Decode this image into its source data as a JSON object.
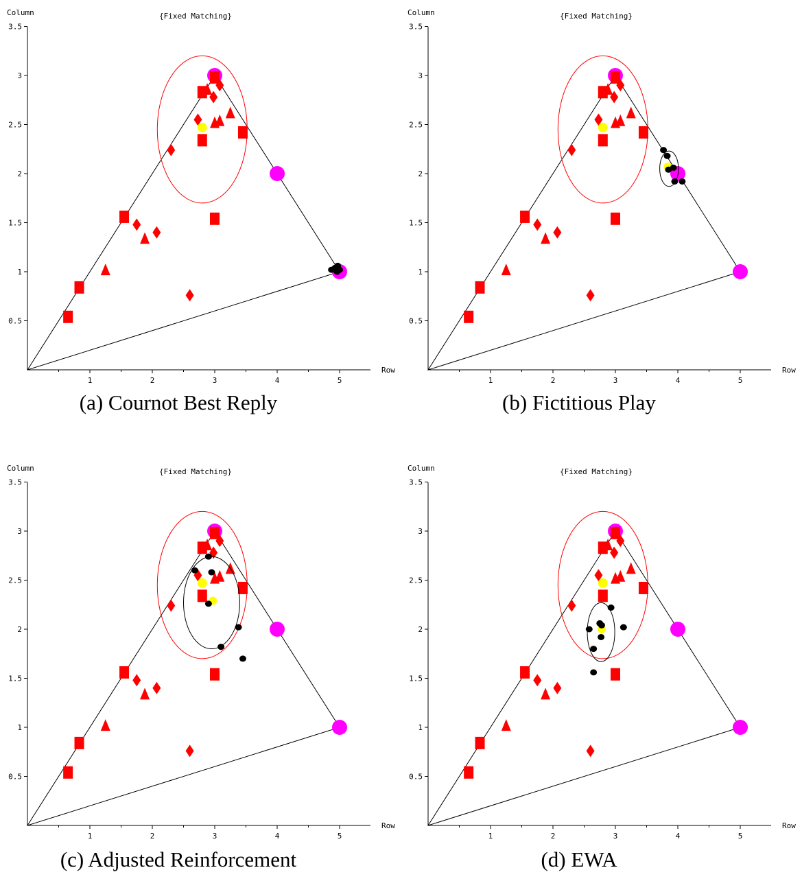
{
  "colors": {
    "experimental": "#ff0000",
    "mean": "#ffff00",
    "equilibrium": "#ff00ff",
    "simulated": "#000000",
    "axes": "#000000"
  },
  "shared": {
    "triangle": [
      [
        0,
        0
      ],
      [
        3,
        3
      ],
      [
        5,
        1
      ]
    ],
    "equilibria": [
      [
        3,
        3
      ],
      [
        4,
        2
      ],
      [
        5,
        1
      ]
    ],
    "experimental_squares": [
      [
        0.65,
        0.54
      ],
      [
        0.83,
        0.84
      ],
      [
        1.55,
        1.56
      ],
      [
        2.8,
        2.83
      ],
      [
        2.8,
        2.34
      ],
      [
        3.0,
        2.98
      ],
      [
        3.0,
        1.54
      ],
      [
        3.45,
        2.42
      ]
    ],
    "experimental_diamonds": [
      [
        1.75,
        1.48
      ],
      [
        2.07,
        1.4
      ],
      [
        2.3,
        2.24
      ],
      [
        2.6,
        0.76
      ],
      [
        2.73,
        2.55
      ],
      [
        2.98,
        2.78
      ],
      [
        3.08,
        2.9
      ]
    ],
    "experimental_triangles": [
      [
        1.25,
        1.02
      ],
      [
        1.88,
        1.34
      ],
      [
        2.88,
        2.86
      ],
      [
        3.0,
        2.52
      ],
      [
        3.08,
        2.54
      ],
      [
        3.25,
        2.62
      ]
    ],
    "experimental_mean": [
      2.8,
      2.47
    ],
    "experimental_ellipse": {
      "cx": 2.8,
      "cy": 2.45,
      "rx": 0.72,
      "ry": 0.75
    }
  },
  "chart_data": [
    {
      "type": "scatter",
      "title": "{Fixed Matching}",
      "caption": "(a) Cournot Best Reply",
      "xlabel": "Row",
      "ylabel": "Column",
      "xlim": [
        0,
        5.5
      ],
      "ylim": [
        0,
        3.5
      ],
      "xticks": [
        "1",
        "2",
        "3",
        "4",
        "5"
      ],
      "yticks": [
        "0.5",
        "1",
        "1.5",
        "2",
        "2.5",
        "3",
        "3.5"
      ],
      "simulated_points": [
        [
          4.87,
          1.02
        ],
        [
          4.93,
          1.04
        ],
        [
          4.97,
          1.06
        ],
        [
          5.0,
          1.02
        ],
        [
          4.96,
          1.0
        ]
      ],
      "simulated_mean": [
        4.95,
        1.03
      ],
      "simulated_ellipse": {
        "cx": 4.95,
        "cy": 1.03,
        "rx": 0.05,
        "ry": 0.04
      }
    },
    {
      "type": "scatter",
      "title": "{Fixed Matching}",
      "caption": "(b) Fictitious Play",
      "xlabel": "Row",
      "ylabel": "Column",
      "xlim": [
        0,
        5.5
      ],
      "ylim": [
        0,
        3.5
      ],
      "xticks": [
        "1",
        "2",
        "3",
        "4",
        "5"
      ],
      "yticks": [
        "0.5",
        "1",
        "1.5",
        "2",
        "2.5",
        "3",
        "3.5"
      ],
      "simulated_points": [
        [
          3.77,
          2.24
        ],
        [
          3.83,
          2.18
        ],
        [
          3.85,
          2.04
        ],
        [
          3.93,
          2.06
        ],
        [
          3.95,
          1.92
        ],
        [
          4.07,
          1.92
        ]
      ],
      "simulated_mean": [
        3.84,
        2.07
      ],
      "simulated_ellipse": {
        "cx": 3.86,
        "cy": 2.05,
        "rx": 0.15,
        "ry": 0.18
      }
    },
    {
      "type": "scatter",
      "title": "{Fixed Matching}",
      "caption": "(c) Adjusted Reinforcement",
      "xlabel": "Row",
      "ylabel": "Column",
      "xlim": [
        0,
        5.5
      ],
      "ylim": [
        0,
        3.5
      ],
      "xticks": [
        "1",
        "2",
        "3",
        "4",
        "5"
      ],
      "yticks": [
        "0.5",
        "1",
        "1.5",
        "2",
        "2.5",
        "3",
        "3.5"
      ],
      "simulated_points": [
        [
          2.68,
          2.6
        ],
        [
          2.9,
          2.74
        ],
        [
          2.95,
          2.58
        ],
        [
          2.9,
          2.26
        ],
        [
          3.38,
          2.02
        ],
        [
          3.1,
          1.82
        ],
        [
          3.45,
          1.7
        ]
      ],
      "simulated_mean": [
        2.97,
        2.29
      ],
      "simulated_ellipse": {
        "cx": 2.95,
        "cy": 2.27,
        "rx": 0.45,
        "ry": 0.47
      }
    },
    {
      "type": "scatter",
      "title": "{Fixed Matching}",
      "caption": "(d) EWA",
      "xlabel": "Row",
      "ylabel": "Column",
      "xlim": [
        0,
        5.5
      ],
      "ylim": [
        0,
        3.5
      ],
      "xticks": [
        "1",
        "2",
        "3",
        "4",
        "5"
      ],
      "yticks": [
        "0.5",
        "1",
        "1.5",
        "2",
        "2.5",
        "3",
        "3.5"
      ],
      "simulated_points": [
        [
          2.58,
          2.0
        ],
        [
          2.75,
          2.06
        ],
        [
          2.78,
          2.04
        ],
        [
          2.77,
          1.92
        ],
        [
          2.93,
          2.22
        ],
        [
          3.13,
          2.02
        ],
        [
          2.65,
          1.8
        ],
        [
          2.65,
          1.56
        ]
      ],
      "simulated_mean": [
        2.78,
        2.0
      ],
      "simulated_ellipse": {
        "cx": 2.77,
        "cy": 1.97,
        "rx": 0.22,
        "ry": 0.3
      }
    }
  ]
}
